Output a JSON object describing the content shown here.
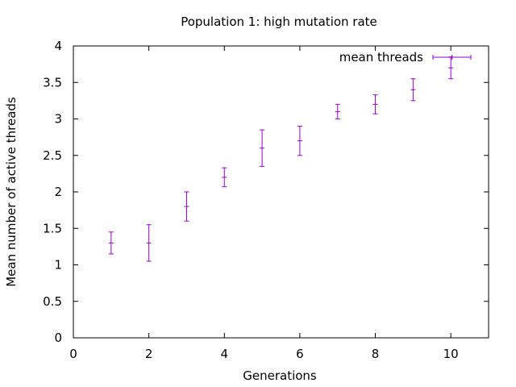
{
  "chart_data": {
    "type": "scatter",
    "title": "Population 1: high mutation rate",
    "xlabel": "Generations",
    "ylabel": "Mean number of active threads",
    "xlim": [
      0,
      11
    ],
    "ylim": [
      0,
      4
    ],
    "xticks": [
      0,
      2,
      4,
      6,
      8,
      10
    ],
    "xtick_labels": [
      "0",
      "2",
      "4",
      "6",
      "8",
      "10"
    ],
    "yticks": [
      0,
      0.5,
      1,
      1.5,
      2,
      2.5,
      3,
      3.5,
      4
    ],
    "ytick_labels": [
      "0",
      "0.5",
      "1",
      "1.5",
      "2",
      "2.5",
      "3",
      "3.5",
      "4"
    ],
    "grid": false,
    "legend_position": "top-right",
    "series": [
      {
        "name": "mean threads",
        "color": "#9400d3",
        "style": "yerrorbars",
        "points": [
          {
            "x": 1,
            "y": 1.3,
            "ylow": 1.15,
            "yhigh": 1.45
          },
          {
            "x": 2,
            "y": 1.3,
            "ylow": 1.05,
            "yhigh": 1.55
          },
          {
            "x": 3,
            "y": 1.8,
            "ylow": 1.6,
            "yhigh": 2.0
          },
          {
            "x": 4,
            "y": 2.2,
            "ylow": 2.07,
            "yhigh": 2.33
          },
          {
            "x": 5,
            "y": 2.6,
            "ylow": 2.35,
            "yhigh": 2.85
          },
          {
            "x": 6,
            "y": 2.7,
            "ylow": 2.5,
            "yhigh": 2.9
          },
          {
            "x": 7,
            "y": 3.1,
            "ylow": 3.0,
            "yhigh": 3.2
          },
          {
            "x": 8,
            "y": 3.2,
            "ylow": 3.07,
            "yhigh": 3.33
          },
          {
            "x": 9,
            "y": 3.4,
            "ylow": 3.25,
            "yhigh": 3.55
          },
          {
            "x": 10,
            "y": 3.7,
            "ylow": 3.55,
            "yhigh": 3.85
          }
        ]
      }
    ]
  }
}
